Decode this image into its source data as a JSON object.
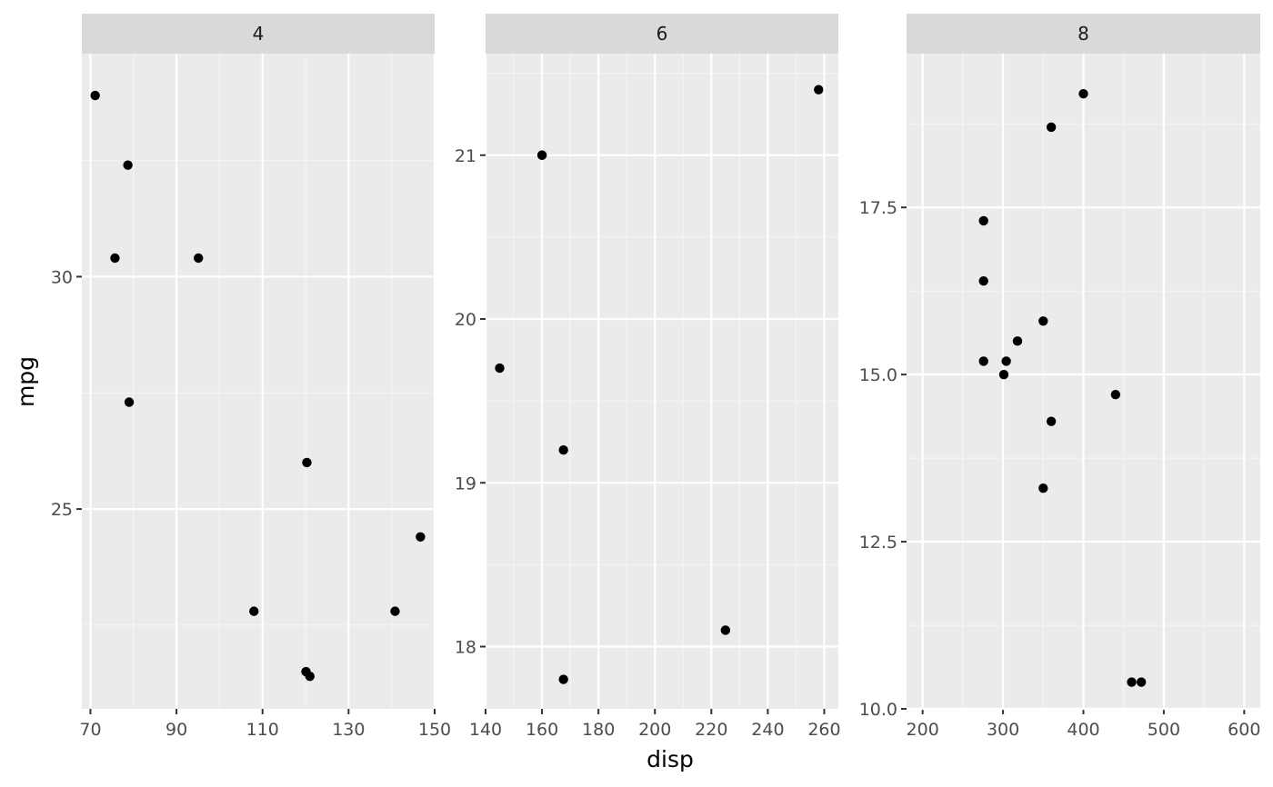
{
  "chart_data": {
    "type": "scatter",
    "xlabel": "disp",
    "ylabel": "mpg",
    "grid": true,
    "facets": [
      {
        "strip": "4",
        "xlim": [
          68,
          150
        ],
        "ylim": [
          20.7,
          34.8
        ],
        "x_ticks": [
          "70",
          "90",
          "110",
          "130",
          "150"
        ],
        "y_ticks": [
          "25",
          "30"
        ],
        "points": [
          {
            "x": 71.1,
            "y": 33.9
          },
          {
            "x": 78.7,
            "y": 32.4
          },
          {
            "x": 75.7,
            "y": 30.4
          },
          {
            "x": 95.1,
            "y": 30.4
          },
          {
            "x": 79.0,
            "y": 27.3
          },
          {
            "x": 120.3,
            "y": 26.0
          },
          {
            "x": 146.7,
            "y": 24.4
          },
          {
            "x": 108.0,
            "y": 22.8
          },
          {
            "x": 140.8,
            "y": 22.8
          },
          {
            "x": 120.1,
            "y": 21.5
          },
          {
            "x": 121.0,
            "y": 21.4
          }
        ]
      },
      {
        "strip": "6",
        "xlim": [
          140,
          265
        ],
        "ylim": [
          17.62,
          21.62
        ],
        "x_ticks": [
          "140",
          "160",
          "180",
          "200",
          "220",
          "240",
          "260"
        ],
        "y_ticks": [
          "18",
          "19",
          "20",
          "21"
        ],
        "points": [
          {
            "x": 258.0,
            "y": 21.4
          },
          {
            "x": 160.0,
            "y": 21.0
          },
          {
            "x": 160.0,
            "y": 21.0
          },
          {
            "x": 145.0,
            "y": 19.7
          },
          {
            "x": 167.6,
            "y": 19.2
          },
          {
            "x": 225.0,
            "y": 18.1
          },
          {
            "x": 167.6,
            "y": 17.8
          }
        ]
      },
      {
        "strip": "8",
        "xlim": [
          180,
          620
        ],
        "ylim": [
          10.0,
          19.8
        ],
        "x_ticks": [
          "200",
          "300",
          "400",
          "500",
          "600"
        ],
        "y_ticks": [
          "10.0",
          "12.5",
          "15.0",
          "17.5"
        ],
        "points": [
          {
            "x": 400.0,
            "y": 19.2
          },
          {
            "x": 360.0,
            "y": 18.7
          },
          {
            "x": 275.8,
            "y": 17.3
          },
          {
            "x": 275.8,
            "y": 16.4
          },
          {
            "x": 350.0,
            "y": 15.8
          },
          {
            "x": 318.0,
            "y": 15.5
          },
          {
            "x": 304.0,
            "y": 15.2
          },
          {
            "x": 275.8,
            "y": 15.2
          },
          {
            "x": 301.0,
            "y": 15.0
          },
          {
            "x": 440.0,
            "y": 14.7
          },
          {
            "x": 360.0,
            "y": 14.3
          },
          {
            "x": 350.0,
            "y": 13.3
          },
          {
            "x": 460.0,
            "y": 10.4
          },
          {
            "x": 472.0,
            "y": 10.4
          }
        ]
      }
    ]
  }
}
